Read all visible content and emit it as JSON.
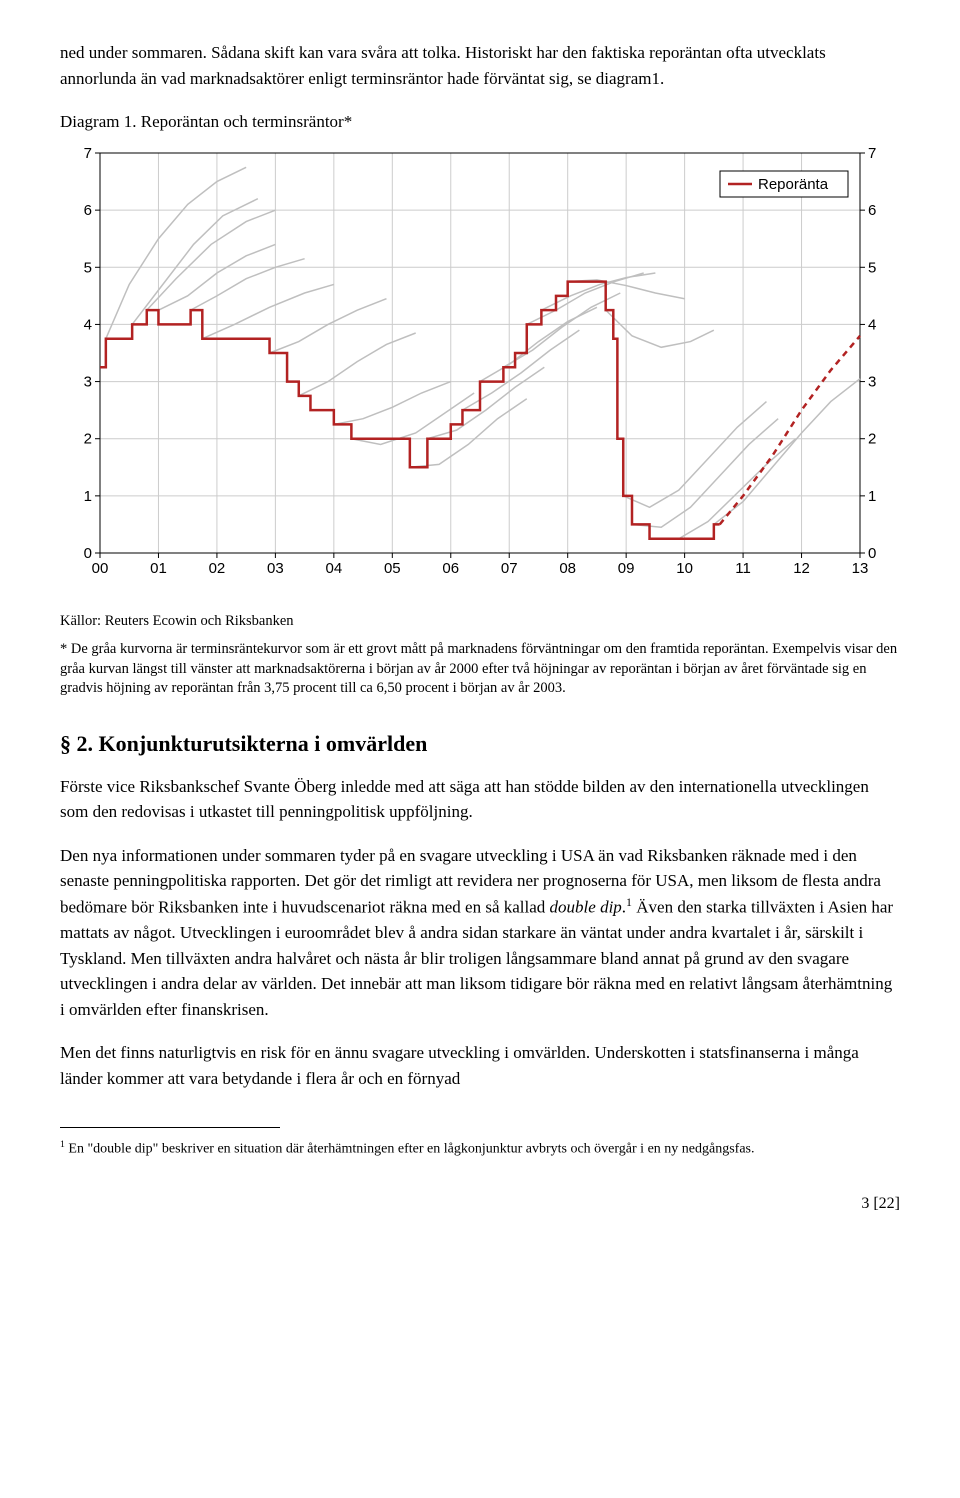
{
  "para1": "ned under sommaren. Sådana skift kan vara svåra att tolka. Historiskt har den faktiska reporäntan ofta utvecklats annorlunda än vad marknadsaktörer enligt terminsräntor hade förväntat sig, se diagram1.",
  "chart": {
    "title": "Diagram 1. Reporäntan och terminsräntor*",
    "legend_label": "Reporänta",
    "ylim": [
      0,
      7
    ],
    "ytick_step": 1,
    "x_labels": [
      "00",
      "01",
      "02",
      "03",
      "04",
      "05",
      "06",
      "07",
      "08",
      "09",
      "10",
      "11",
      "12",
      "13"
    ],
    "y_ticks": [
      0,
      1,
      2,
      3,
      4,
      5,
      6,
      7
    ],
    "repo_color": "#b22222",
    "grey_color": "#bfbfbf",
    "grid_color": "#cccccc",
    "background_color": "#ffffff",
    "repo_line": [
      [
        0.0,
        3.25
      ],
      [
        0.1,
        3.25
      ],
      [
        0.1,
        3.75
      ],
      [
        0.55,
        3.75
      ],
      [
        0.55,
        4.0
      ],
      [
        0.8,
        4.0
      ],
      [
        0.8,
        4.25
      ],
      [
        1.0,
        4.25
      ],
      [
        1.0,
        4.0
      ],
      [
        1.55,
        4.0
      ],
      [
        1.55,
        4.25
      ],
      [
        1.75,
        4.25
      ],
      [
        1.75,
        3.75
      ],
      [
        2.9,
        3.75
      ],
      [
        2.9,
        3.5
      ],
      [
        3.2,
        3.5
      ],
      [
        3.2,
        3.0
      ],
      [
        3.4,
        3.0
      ],
      [
        3.4,
        2.75
      ],
      [
        3.6,
        2.75
      ],
      [
        3.6,
        2.5
      ],
      [
        4.0,
        2.5
      ],
      [
        4.0,
        2.25
      ],
      [
        4.3,
        2.25
      ],
      [
        4.3,
        2.0
      ],
      [
        5.3,
        2.0
      ],
      [
        5.3,
        1.5
      ],
      [
        5.6,
        1.5
      ],
      [
        5.6,
        2.0
      ],
      [
        6.0,
        2.0
      ],
      [
        6.0,
        2.25
      ],
      [
        6.2,
        2.25
      ],
      [
        6.2,
        2.5
      ],
      [
        6.5,
        2.5
      ],
      [
        6.5,
        3.0
      ],
      [
        6.9,
        3.0
      ],
      [
        6.9,
        3.25
      ],
      [
        7.1,
        3.25
      ],
      [
        7.1,
        3.5
      ],
      [
        7.3,
        3.5
      ],
      [
        7.3,
        4.0
      ],
      [
        7.55,
        4.0
      ],
      [
        7.55,
        4.25
      ],
      [
        7.8,
        4.25
      ],
      [
        7.8,
        4.5
      ],
      [
        8.0,
        4.5
      ],
      [
        8.0,
        4.75
      ],
      [
        8.65,
        4.75
      ],
      [
        8.65,
        4.25
      ],
      [
        8.78,
        4.25
      ],
      [
        8.78,
        3.75
      ],
      [
        8.85,
        3.75
      ],
      [
        8.85,
        2.0
      ],
      [
        8.95,
        2.0
      ],
      [
        8.95,
        1.0
      ],
      [
        9.1,
        1.0
      ],
      [
        9.1,
        0.5
      ],
      [
        9.4,
        0.5
      ],
      [
        9.4,
        0.25
      ],
      [
        10.5,
        0.25
      ],
      [
        10.5,
        0.5
      ],
      [
        10.6,
        0.5
      ]
    ],
    "repo_dashed": [
      [
        10.6,
        0.5
      ],
      [
        11.0,
        1.0
      ],
      [
        11.5,
        1.7
      ],
      [
        12.0,
        2.5
      ],
      [
        12.5,
        3.2
      ],
      [
        13.0,
        3.8
      ]
    ],
    "grey_curves": [
      [
        [
          0.1,
          3.75
        ],
        [
          0.5,
          4.7
        ],
        [
          1.0,
          5.5
        ],
        [
          1.5,
          6.1
        ],
        [
          2.0,
          6.5
        ],
        [
          2.5,
          6.75
        ]
      ],
      [
        [
          0.55,
          4.0
        ],
        [
          1.0,
          4.6
        ],
        [
          1.6,
          5.4
        ],
        [
          2.1,
          5.9
        ],
        [
          2.7,
          6.2
        ]
      ],
      [
        [
          0.8,
          4.25
        ],
        [
          1.3,
          4.8
        ],
        [
          1.9,
          5.4
        ],
        [
          2.5,
          5.8
        ],
        [
          3.0,
          6.0
        ]
      ],
      [
        [
          1.0,
          4.25
        ],
        [
          1.5,
          4.5
        ],
        [
          2.0,
          4.9
        ],
        [
          2.5,
          5.2
        ],
        [
          3.0,
          5.4
        ]
      ],
      [
        [
          1.55,
          4.25
        ],
        [
          2.0,
          4.5
        ],
        [
          2.5,
          4.8
        ],
        [
          3.0,
          5.0
        ],
        [
          3.5,
          5.15
        ]
      ],
      [
        [
          1.75,
          3.75
        ],
        [
          2.3,
          4.0
        ],
        [
          2.9,
          4.3
        ],
        [
          3.5,
          4.55
        ],
        [
          4.0,
          4.7
        ]
      ],
      [
        [
          2.9,
          3.5
        ],
        [
          3.4,
          3.7
        ],
        [
          3.9,
          4.0
        ],
        [
          4.4,
          4.25
        ],
        [
          4.9,
          4.45
        ]
      ],
      [
        [
          3.4,
          2.75
        ],
        [
          3.9,
          3.0
        ],
        [
          4.4,
          3.35
        ],
        [
          4.9,
          3.65
        ],
        [
          5.4,
          3.85
        ]
      ],
      [
        [
          4.0,
          2.25
        ],
        [
          4.5,
          2.35
        ],
        [
          5.0,
          2.55
        ],
        [
          5.5,
          2.8
        ],
        [
          6.0,
          3.0
        ]
      ],
      [
        [
          4.3,
          2.0
        ],
        [
          4.8,
          1.9
        ],
        [
          5.4,
          2.1
        ],
        [
          5.9,
          2.45
        ],
        [
          6.4,
          2.8
        ]
      ],
      [
        [
          5.3,
          1.5
        ],
        [
          5.8,
          1.55
        ],
        [
          6.3,
          1.9
        ],
        [
          6.8,
          2.35
        ],
        [
          7.3,
          2.7
        ]
      ],
      [
        [
          5.6,
          2.0
        ],
        [
          6.1,
          2.15
        ],
        [
          6.6,
          2.5
        ],
        [
          7.1,
          2.9
        ],
        [
          7.6,
          3.25
        ]
      ],
      [
        [
          6.2,
          2.5
        ],
        [
          6.7,
          2.8
        ],
        [
          7.2,
          3.15
        ],
        [
          7.7,
          3.55
        ],
        [
          8.2,
          3.9
        ]
      ],
      [
        [
          6.5,
          3.0
        ],
        [
          7.0,
          3.3
        ],
        [
          7.5,
          3.7
        ],
        [
          8.0,
          4.05
        ],
        [
          8.5,
          4.3
        ]
      ],
      [
        [
          6.9,
          3.25
        ],
        [
          7.4,
          3.55
        ],
        [
          7.9,
          3.95
        ],
        [
          8.4,
          4.3
        ],
        [
          8.9,
          4.55
        ]
      ],
      [
        [
          7.3,
          4.0
        ],
        [
          7.8,
          4.25
        ],
        [
          8.3,
          4.55
        ],
        [
          8.8,
          4.75
        ],
        [
          9.3,
          4.9
        ]
      ],
      [
        [
          7.55,
          4.25
        ],
        [
          8.05,
          4.5
        ],
        [
          8.55,
          4.7
        ],
        [
          9.0,
          4.82
        ],
        [
          9.5,
          4.9
        ]
      ],
      [
        [
          8.0,
          4.75
        ],
        [
          8.5,
          4.78
        ],
        [
          9.0,
          4.68
        ],
        [
          9.5,
          4.55
        ],
        [
          10.0,
          4.45
        ]
      ],
      [
        [
          8.65,
          4.25
        ],
        [
          9.1,
          3.8
        ],
        [
          9.6,
          3.6
        ],
        [
          10.1,
          3.7
        ],
        [
          10.5,
          3.9
        ]
      ],
      [
        [
          8.95,
          1.0
        ],
        [
          9.4,
          0.8
        ],
        [
          9.9,
          1.1
        ],
        [
          10.4,
          1.65
        ],
        [
          10.9,
          2.2
        ],
        [
          11.4,
          2.65
        ]
      ],
      [
        [
          9.1,
          0.5
        ],
        [
          9.6,
          0.45
        ],
        [
          10.1,
          0.8
        ],
        [
          10.6,
          1.35
        ],
        [
          11.1,
          1.9
        ],
        [
          11.6,
          2.35
        ]
      ],
      [
        [
          9.4,
          0.25
        ],
        [
          9.9,
          0.25
        ],
        [
          10.4,
          0.55
        ],
        [
          10.9,
          1.05
        ],
        [
          11.4,
          1.55
        ],
        [
          11.9,
          2.0
        ]
      ],
      [
        [
          10.5,
          0.5
        ],
        [
          11.0,
          0.9
        ],
        [
          11.5,
          1.5
        ],
        [
          12.0,
          2.1
        ],
        [
          12.5,
          2.65
        ],
        [
          13.0,
          3.05
        ]
      ]
    ],
    "source": "Källor: Reuters Ecowin och Riksbanken",
    "note": "* De gråa kurvorna är terminsräntekurvor som är ett grovt mått på marknadens förväntningar om den framtida reporäntan. Exempelvis visar den gråa kurvan längst till vänster att marknadsaktörerna i början av år 2000 efter två höjningar av reporäntan i början av året förväntade sig en gradvis höjning av reporäntan från 3,75 procent till ca 6,50 procent i början av år 2003."
  },
  "section2_heading": "§ 2. Konjunkturutsikterna i omvärlden",
  "para2": "Förste vice Riksbankschef Svante Öberg inledde med att säga att han stödde bilden av den internationella utvecklingen som den redovisas i utkastet till penningpolitisk uppföljning.",
  "para3_a": "Den nya informationen under sommaren tyder på en svagare utveckling i USA än vad Riksbanken räknade med i den senaste penningpolitiska rapporten. Det gör det rimligt att revidera ner prognoserna för USA, men liksom de flesta andra bedömare bör Riksbanken inte i huvudscenariot räkna med en så kallad ",
  "para3_italic": "double dip",
  "para3_b": ".",
  "para3_c": " Även den starka tillväxten i Asien har mattats av något. Utvecklingen i euroområdet blev å andra sidan starkare än väntat under andra kvartalet i år, särskilt i Tyskland. Men tillväxten andra halvåret och nästa år blir troligen långsammare bland annat på grund av den svagare utvecklingen i andra delar av världen. Det innebär att man liksom tidigare bör räkna med en relativt långsam återhämtning i omvärlden efter finanskrisen.",
  "para4": "Men det finns naturligtvis en risk för en ännu svagare utveckling i omvärlden. Underskotten i statsfinanserna i många länder kommer att vara betydande i flera år och en förnyad",
  "footnote1_a": " En \"double dip\" beskriver en situation där återhämtningen efter en lågkonjunktur avbryts och övergår i en ny nedgångsfas.",
  "page_num": "3",
  "page_total": "[22]"
}
